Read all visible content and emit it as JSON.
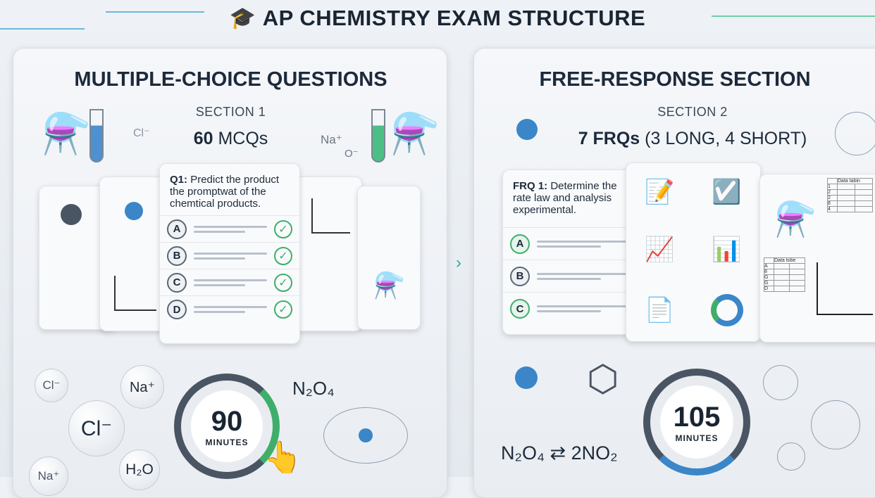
{
  "title": "AP CHEMISTRY EXAM STRUCTURE",
  "colors": {
    "accent_blue": "#3a86c8",
    "accent_green": "#3fae6b",
    "dark": "#1a2533"
  },
  "left": {
    "title": "MULTIPLE-CHOICE QUESTIONS",
    "section": "SECTION 1",
    "count_num": "60",
    "count_text": "MCQs",
    "question_label": "Q1:",
    "question_text": "Predict the product the promptwat of the chemtical products.",
    "options": [
      "A",
      "B",
      "C",
      "D"
    ],
    "ions": {
      "cl_small": "Cl⁻",
      "cl_big": "Cl⁻",
      "na1": "Na⁺",
      "na2": "Na⁺",
      "h2o": "H₂O",
      "na_top": "Na⁺",
      "o_top": "O⁻",
      "cl_top": "Cl⁻"
    },
    "formula": "N₂O₄",
    "timer": {
      "value": "90",
      "unit": "MINUTES"
    }
  },
  "right": {
    "title": "FREE-RESPONSE SECTION",
    "section": "SECTION 2",
    "count_num": "7 FRQs",
    "count_text": "(3 LONG, 4 SHORT)",
    "question_label": "FRQ 1:",
    "question_text": "Determine the rate law and analysis experimental.",
    "options": [
      "A",
      "B",
      "C"
    ],
    "table1": {
      "header": "Data tabin",
      "rows": [
        "1",
        "2",
        "2",
        "8",
        "4"
      ]
    },
    "table2": {
      "header": "Data tobe",
      "rows": [
        "A",
        "8",
        "G",
        "G",
        "D"
      ]
    },
    "equation": "N₂O₄ ⇄ 2NO₂",
    "timer": {
      "value": "105",
      "unit": "MINUTES"
    }
  }
}
